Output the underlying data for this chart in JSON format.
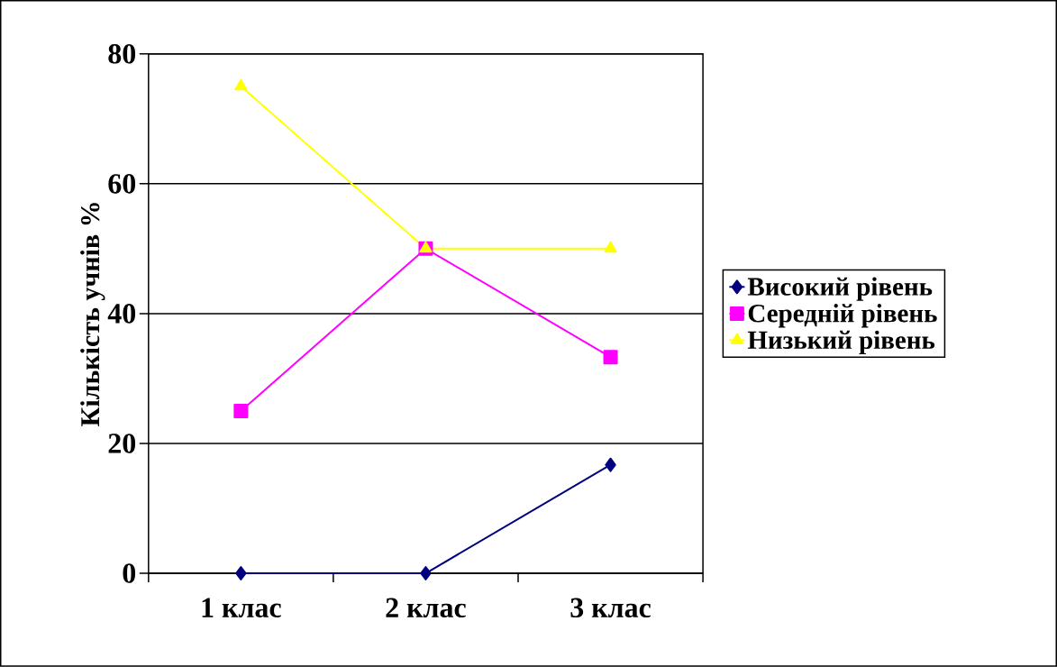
{
  "chart_data": {
    "type": "line",
    "ylabel": "Кількість учнів %",
    "categories": [
      "1 клас",
      "2 клас",
      "3 клас"
    ],
    "series": [
      {
        "name": "Високий рівень",
        "color": "#000080",
        "marker": "diamond",
        "values": [
          0,
          0,
          16.7
        ]
      },
      {
        "name": "Середній рівень",
        "color": "#ff00ff",
        "marker": "square",
        "values": [
          25,
          50,
          33.3
        ]
      },
      {
        "name": "Низький рівень",
        "color": "#ffff00",
        "marker": "triangle",
        "values": [
          75,
          50,
          50
        ]
      }
    ],
    "ylim": [
      0,
      80
    ],
    "yticks": [
      0,
      20,
      40,
      60,
      80
    ],
    "grid": "y",
    "legend": "right",
    "line_style": "solid"
  }
}
